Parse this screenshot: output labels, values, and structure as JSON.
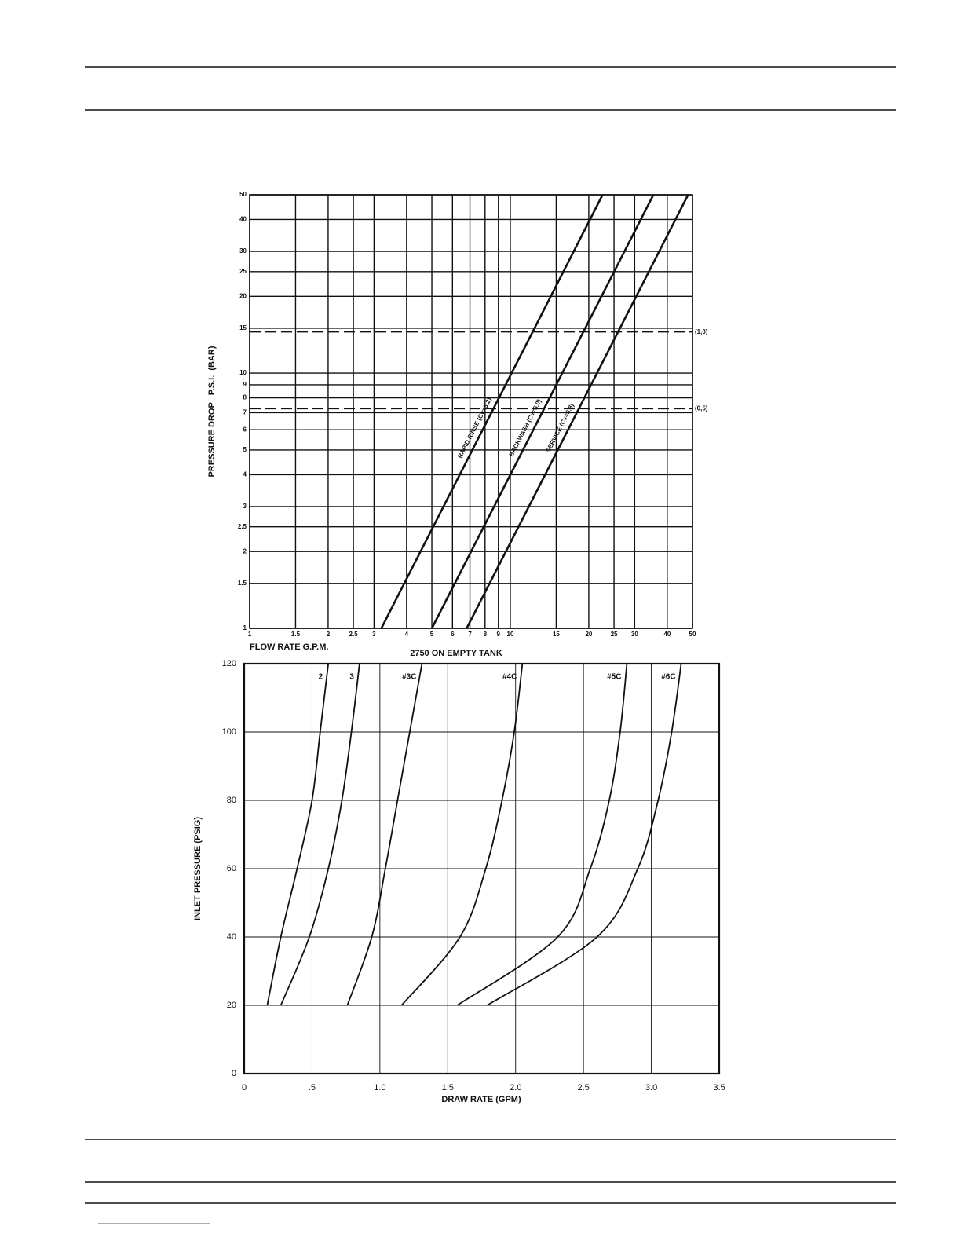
{
  "chart_data": [
    {
      "type": "line",
      "xlabel": "FLOW RATE G.P.M.",
      "ylabel": "PRESSURE DROP   P.S.I.  (BAR)",
      "xscale": "log",
      "yscale": "log",
      "xlim": [
        1,
        50
      ],
      "ylim": [
        1,
        50
      ],
      "xticks": [
        1,
        1.5,
        2,
        2.5,
        3,
        4,
        5,
        6,
        7,
        8,
        9,
        10,
        15,
        20,
        25,
        30,
        40,
        50
      ],
      "yticks": [
        1,
        1.5,
        2,
        2.5,
        3,
        4,
        5,
        6,
        7,
        8,
        9,
        10,
        15,
        20,
        25,
        30,
        40,
        50
      ],
      "grid": true,
      "reference_lines": [
        {
          "value": 14.5,
          "label": "(1,0)"
        },
        {
          "value": 7.25,
          "label": "(0,5)"
        }
      ],
      "series": [
        {
          "name": "RAPID RINSE (Cv=3.2)",
          "color": "#111111",
          "x": [
            3.2,
            22.6
          ],
          "values": [
            1,
            50
          ]
        },
        {
          "name": "BACKWASH (Cv=5.0)",
          "color": "#111111",
          "x": [
            5,
            35.4
          ],
          "values": [
            1,
            50
          ]
        },
        {
          "name": "SERVICE (Cv=6.8)",
          "color": "#111111",
          "x": [
            6.8,
            48.1
          ],
          "values": [
            1,
            50
          ]
        }
      ]
    },
    {
      "type": "line",
      "title": "2750 ON EMPTY TANK",
      "xlabel": "DRAW RATE (GPM)",
      "ylabel": "INLET PRESSURE (PSIG)",
      "xlim": [
        0,
        3.5
      ],
      "ylim": [
        0,
        120
      ],
      "xticks": [
        0,
        {
          "value": 0.5,
          "label": ".5"
        },
        {
          "value": 1,
          "label": "1.0"
        },
        1.5,
        {
          "value": 2,
          "label": "2.0"
        },
        2.5,
        {
          "value": 3,
          "label": "3.0"
        },
        3.5
      ],
      "yticks": [
        0,
        20,
        40,
        60,
        80,
        100,
        120
      ],
      "grid": true,
      "series": [
        {
          "name": "2",
          "color": "#111111",
          "x": [
            0.17,
            0.27,
            0.39,
            0.5,
            0.56,
            0.62
          ],
          "values": [
            20,
            40,
            60,
            80,
            100,
            120
          ]
        },
        {
          "name": "3",
          "color": "#111111",
          "x": [
            0.27,
            0.48,
            0.62,
            0.72,
            0.79,
            0.85
          ],
          "values": [
            20,
            40,
            60,
            80,
            100,
            120
          ]
        },
        {
          "name": "#3C",
          "color": "#111111",
          "x": [
            0.76,
            0.94,
            1.04,
            1.13,
            1.22,
            1.31
          ],
          "values": [
            20,
            40,
            60,
            80,
            100,
            120
          ]
        },
        {
          "name": "#4C",
          "color": "#111111",
          "x": [
            1.16,
            1.59,
            1.78,
            1.9,
            1.99,
            2.05
          ],
          "values": [
            20,
            40,
            60,
            80,
            100,
            120
          ]
        },
        {
          "name": "#5C",
          "color": "#111111",
          "x": [
            1.57,
            2.31,
            2.55,
            2.69,
            2.77,
            2.82
          ],
          "values": [
            20,
            40,
            60,
            80,
            100,
            120
          ]
        },
        {
          "name": "#6C",
          "color": "#111111",
          "x": [
            1.79,
            2.6,
            2.9,
            3.05,
            3.15,
            3.22
          ],
          "values": [
            20,
            40,
            60,
            80,
            100,
            120
          ]
        }
      ]
    }
  ]
}
